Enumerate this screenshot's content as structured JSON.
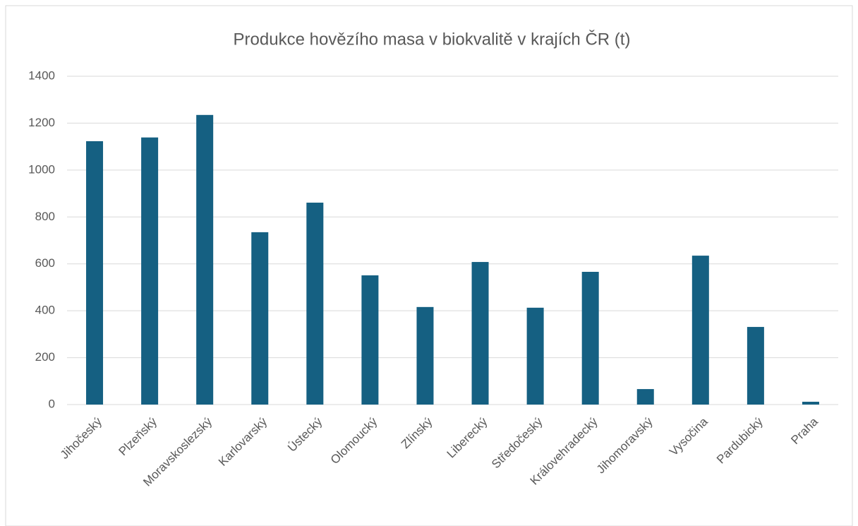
{
  "chart_data": {
    "type": "bar",
    "title": "Produkce hovězího masa v biokvalitě v krajích ČR (t)",
    "categories": [
      "Jihočeský",
      "Plzeňský",
      "Moravskoslezský",
      "Karlovarský",
      "Ústecký",
      "Olomoucký",
      "Zlínský",
      "Liberecký",
      "Středočeský",
      "Královehradecký",
      "Jihomoravský",
      "Vysočina",
      "Pardubický",
      "Praha"
    ],
    "values": [
      1123,
      1139,
      1235,
      735,
      861,
      551,
      416,
      608,
      413,
      566,
      66,
      635,
      331,
      12
    ],
    "color": "#156082",
    "ylim": [
      0,
      1400
    ],
    "yticks": [
      0,
      200,
      400,
      600,
      800,
      1000,
      1200,
      1400
    ],
    "grid": true
  }
}
